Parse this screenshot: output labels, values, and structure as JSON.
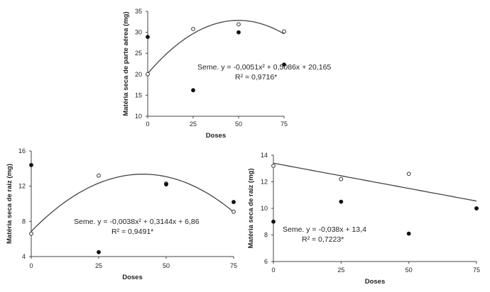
{
  "chart_data": [
    {
      "type": "scatter",
      "panel": "top",
      "ylabel": "Matéria seca de parte aérea (mg)",
      "xlabel": "Doses",
      "xlim": [
        0,
        75
      ],
      "ylim": [
        10,
        35
      ],
      "xticks": [
        0,
        25,
        50,
        75
      ],
      "yticks": [
        10,
        15,
        20,
        25,
        30,
        35
      ],
      "series": [
        {
          "name": "Seme.",
          "marker": "open",
          "x": [
            0,
            25,
            50,
            75
          ],
          "y": [
            20.0,
            30.8,
            31.9,
            30.2
          ]
        },
        {
          "name": "filled",
          "marker": "filled",
          "x": [
            0,
            25,
            50,
            75
          ],
          "y": [
            28.9,
            16.2,
            30.0,
            22.3
          ]
        }
      ],
      "fit": {
        "a": -0.0051,
        "b": 0.5086,
        "c": 20.165
      },
      "equation": "Seme. y = -0,0051x² + 0,5086x + 20,165",
      "r2": "R² = 0,9716*"
    },
    {
      "type": "scatter",
      "panel": "bottom-left",
      "ylabel": "Matéria seca de raiz (mg)",
      "xlabel": "Doses",
      "xlim": [
        0,
        75
      ],
      "ylim": [
        4,
        16
      ],
      "xticks": [
        0,
        25,
        50,
        75
      ],
      "yticks": [
        4,
        8,
        12,
        16
      ],
      "series": [
        {
          "name": "Seme.",
          "marker": "open",
          "x": [
            0,
            25,
            50,
            75
          ],
          "y": [
            6.6,
            13.2,
            12.3,
            9.1
          ]
        },
        {
          "name": "filled",
          "marker": "filled",
          "x": [
            0,
            25,
            50,
            75
          ],
          "y": [
            14.4,
            4.5,
            12.2,
            10.2
          ]
        }
      ],
      "fit": {
        "a": -0.0038,
        "b": 0.3144,
        "c": 6.86
      },
      "equation": "Seme. y = -0,0038x² + 0,3144x + 6,86",
      "r2": "R² = 0,9491*"
    },
    {
      "type": "scatter",
      "panel": "bottom-right",
      "ylabel": "Matéria seca de raiz (mg)",
      "xlabel": "Doses",
      "xlim": [
        0,
        75
      ],
      "ylim": [
        6,
        14
      ],
      "xticks": [
        0,
        25,
        50,
        75
      ],
      "yticks": [
        6,
        8,
        10,
        12,
        14
      ],
      "series": [
        {
          "name": "Seme.",
          "marker": "open",
          "x": [
            0,
            25,
            50,
            75
          ],
          "y": [
            13.2,
            12.2,
            12.6,
            10.0
          ]
        },
        {
          "name": "filled",
          "marker": "filled",
          "x": [
            0,
            25,
            50,
            75
          ],
          "y": [
            9.0,
            10.5,
            8.1,
            10.0
          ]
        }
      ],
      "fit": {
        "a": 0,
        "b": -0.038,
        "c": 13.4
      },
      "equation": "Seme. y = -0,038x + 13,4",
      "r2": "R² = 0,7223*"
    }
  ]
}
